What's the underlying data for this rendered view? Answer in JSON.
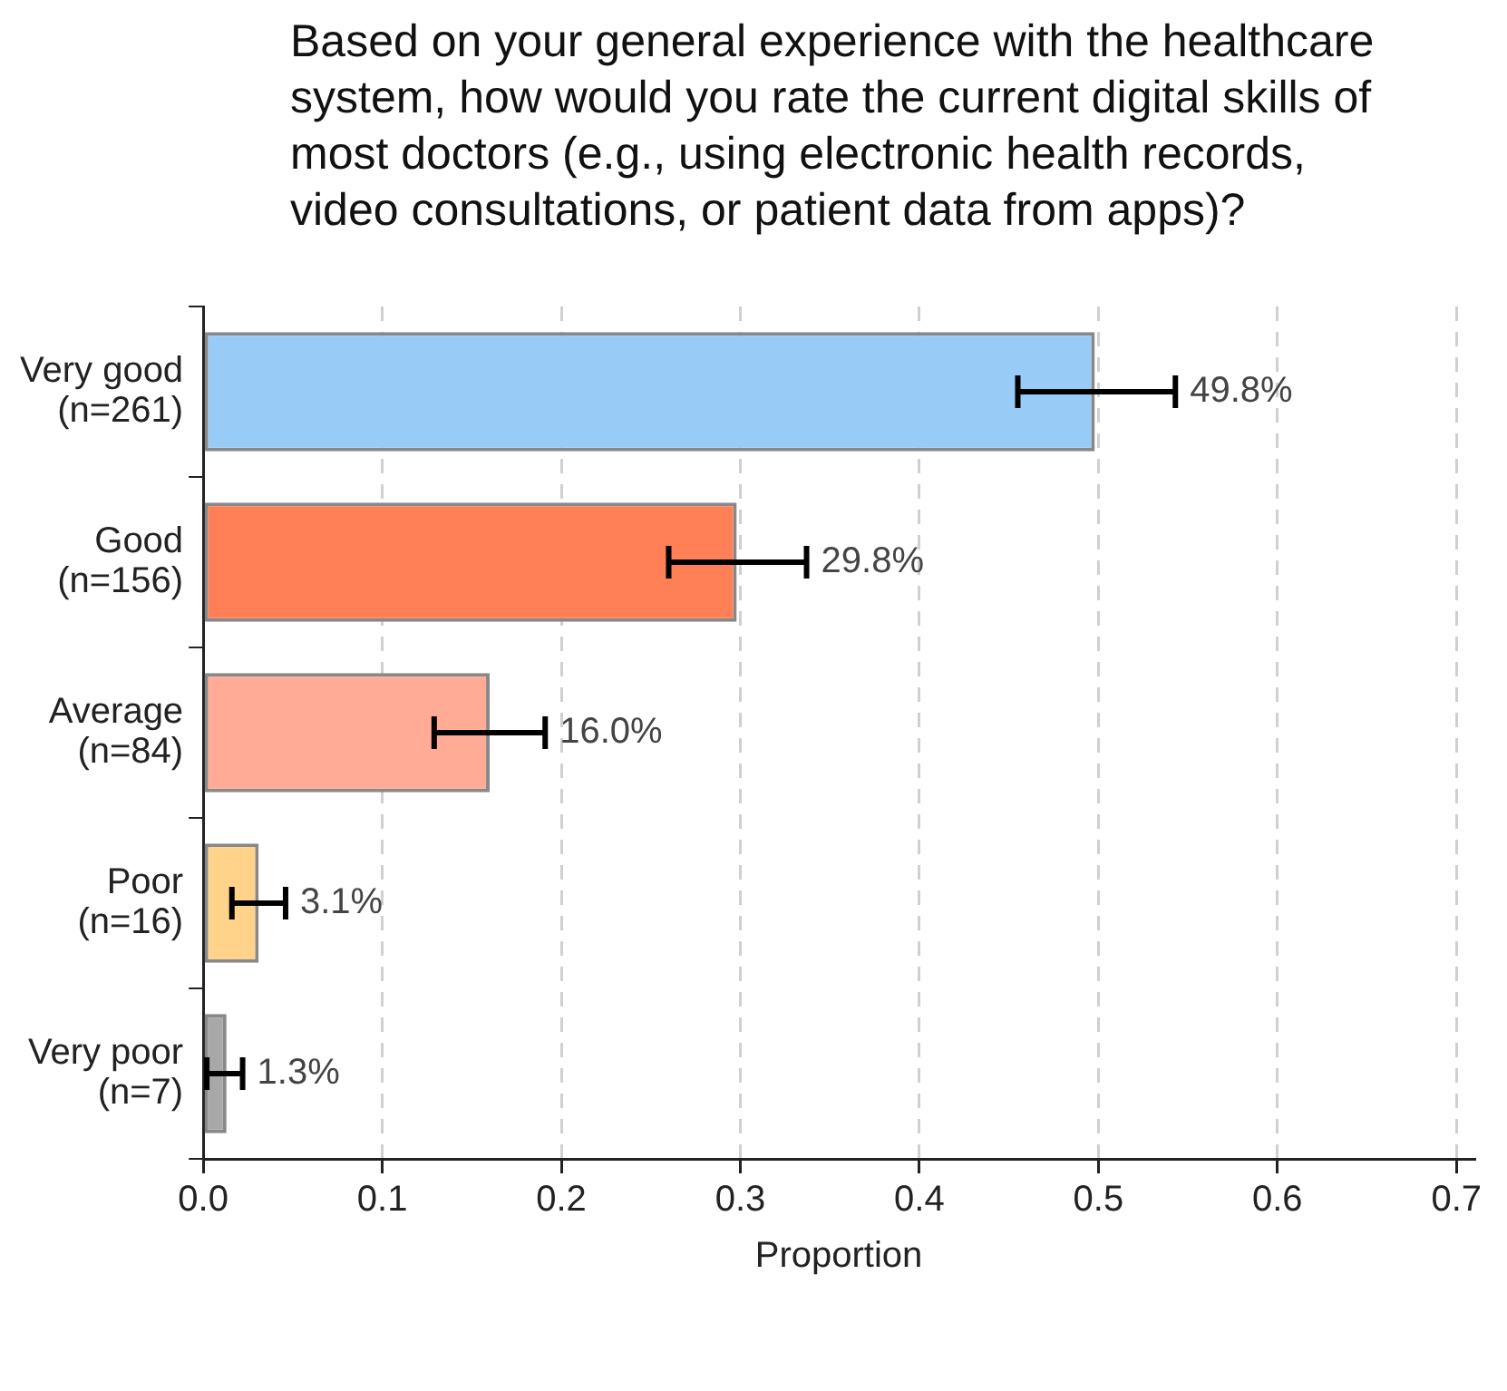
{
  "chart_data": {
    "type": "bar",
    "orientation": "horizontal",
    "title": "Based on your general experience with the healthcare system, how would you rate the current digital skills of most doctors (e.g., using electronic health records, video consultations, or patient data from apps)?",
    "xlabel": "Proportion",
    "categories": [
      "Very good\n(n=261)",
      "Good\n(n=156)",
      "Average\n(n=84)",
      "Poor\n(n=16)",
      "Very poor\n(n=7)"
    ],
    "values": [
      0.498,
      0.298,
      0.16,
      0.031,
      0.013
    ],
    "colors": [
      "#99cbf7",
      "#ff7f57",
      "#ffab96",
      "#ffd38a",
      "#a8a8a8"
    ],
    "errors": [
      [
        0.455,
        0.543
      ],
      [
        0.26,
        0.337
      ],
      [
        0.129,
        0.191
      ],
      [
        0.016,
        0.046
      ],
      [
        0.002,
        0.022
      ]
    ],
    "value_labels": [
      "49.8%",
      "29.8%",
      "16.0%",
      "3.1%",
      "1.3%"
    ],
    "xlim": [
      0,
      0.71
    ],
    "xticks": [
      {
        "value": 0,
        "label": "0.0"
      },
      {
        "value": 0.1,
        "label": "0.1"
      },
      {
        "value": 0.2,
        "label": "0.2"
      },
      {
        "value": 0.3,
        "label": "0.3"
      },
      {
        "value": 0.4,
        "label": "0.4"
      },
      {
        "value": 0.5,
        "label": "0.5"
      },
      {
        "value": 0.6,
        "label": "0.6"
      },
      {
        "value": 0.7,
        "label": "0.7"
      }
    ],
    "grid": "x",
    "legend": false
  }
}
